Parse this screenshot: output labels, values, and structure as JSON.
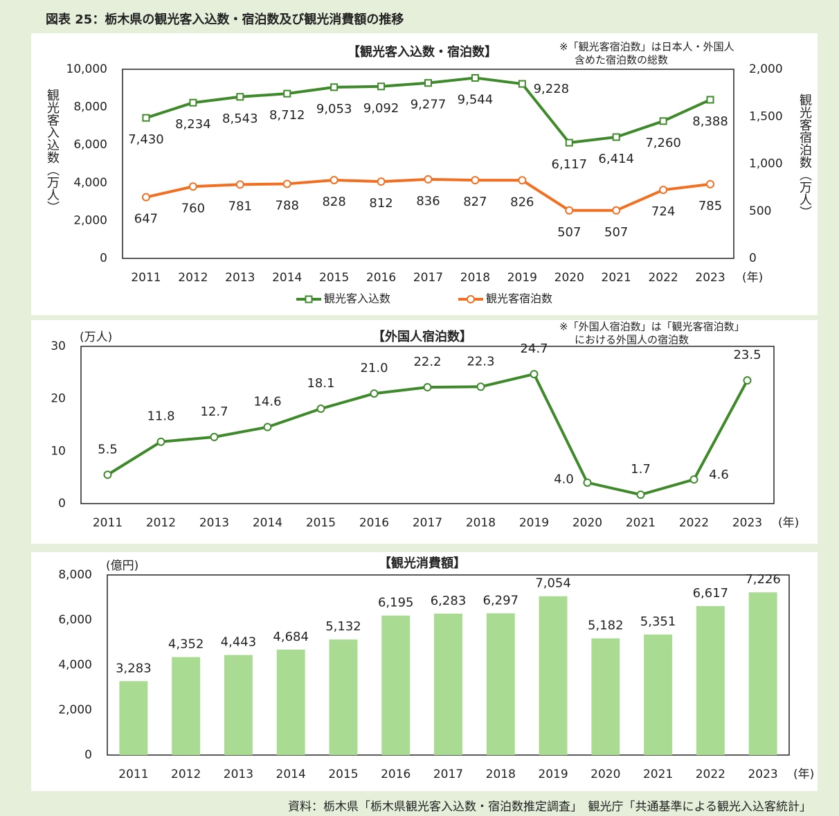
{
  "title": "図表 25：栃木県の観光客入込数・宿泊数及び観光消費額の推移",
  "source": "資料：栃木県「栃木県観光客入込数・宿泊数推定調査」　観光庁「共通基準による観光入込客統計」",
  "chart_data": [
    {
      "type": "line",
      "title": "【観光客入込数・宿泊数】",
      "notes": [
        "※「観光客宿泊数」は日本人・外国人",
        "含めた宿泊数の総数"
      ],
      "y_label": "観光客入込数（万人）",
      "y2_label": "観光客宿泊数（万人）",
      "x_unit": "(年)",
      "categories": [
        "2011",
        "2012",
        "2013",
        "2014",
        "2015",
        "2016",
        "2017",
        "2018",
        "2019",
        "2020",
        "2021",
        "2022",
        "2023"
      ],
      "series": [
        {
          "name": "観光客入込数",
          "color": "#3e8a2a",
          "marker": "square",
          "values": [
            7430,
            8234,
            8543,
            8712,
            9053,
            9092,
            9277,
            9544,
            9228,
            6117,
            6414,
            7260,
            8388
          ],
          "value_labels": [
            "7,430",
            "8,234",
            "8,543",
            "8,712",
            "9,053",
            "9,092",
            "9,277",
            "9,544",
            "9,228",
            "6,117",
            "6,414",
            "7,260",
            "8,388"
          ]
        },
        {
          "name": "観光客宿泊数",
          "color": "#f26f21",
          "marker": "circle",
          "axis": "y2",
          "values": [
            647,
            760,
            781,
            788,
            828,
            812,
            836,
            827,
            826,
            507,
            507,
            724,
            785
          ]
        }
      ],
      "ylim": [
        0,
        10000
      ],
      "yticks": [
        0,
        {
          "value": 2000,
          "label": "2,000"
        },
        {
          "value": 4000,
          "label": "4,000"
        },
        {
          "value": 6000,
          "label": "6,000"
        },
        {
          "value": 8000,
          "label": "8,000"
        },
        {
          "value": 10000,
          "label": "10,000"
        }
      ],
      "y2lim": [
        0,
        2000
      ],
      "y2ticks": [
        0,
        500,
        {
          "value": 1000,
          "label": "1,000"
        },
        {
          "value": 1500,
          "label": "1,500"
        },
        {
          "value": 2000,
          "label": "2,000"
        }
      ],
      "legend": "bottom"
    },
    {
      "type": "line",
      "title": "【外国人宿泊数】",
      "notes": [
        "※「外国人宿泊数」は「観光客宿泊数」",
        "における外国人の宿泊数"
      ],
      "y_unit": "(万人)",
      "x_unit": "(年)",
      "categories": [
        "2011",
        "2012",
        "2013",
        "2014",
        "2015",
        "2016",
        "2017",
        "2018",
        "2019",
        "2020",
        "2021",
        "2022",
        "2023"
      ],
      "color": "#3e8a2a",
      "marker": "circle",
      "values": [
        5.5,
        11.8,
        12.7,
        14.6,
        18.1,
        21.0,
        22.2,
        22.3,
        24.7,
        4.0,
        1.7,
        4.6,
        23.5
      ],
      "value_labels": [
        "5.5",
        "11.8",
        "12.7",
        "14.6",
        "18.1",
        "21.0",
        "22.2",
        "22.3",
        "24.7",
        "4.0",
        "1.7",
        "4.6",
        "23.5"
      ],
      "ylim": [
        0,
        30
      ],
      "yticks": [
        0,
        10,
        20,
        30
      ]
    },
    {
      "type": "bar",
      "title": "【観光消費額】",
      "y_unit": "(億円)",
      "x_unit": "(年)",
      "categories": [
        "2011",
        "2012",
        "2013",
        "2014",
        "2015",
        "2016",
        "2017",
        "2018",
        "2019",
        "2020",
        "2021",
        "2022",
        "2023"
      ],
      "color": "#a9dc92",
      "values": [
        3283,
        4352,
        4443,
        4684,
        5132,
        6195,
        6283,
        6297,
        7054,
        5182,
        5351,
        6617,
        7226
      ],
      "value_labels": [
        "3,283",
        "4,352",
        "4,443",
        "4,684",
        "5,132",
        "6,195",
        "6,283",
        "6,297",
        "7,054",
        "5,182",
        "5,351",
        "6,617",
        "7,226"
      ],
      "ylim": [
        0,
        8000
      ],
      "yticks": [
        0,
        {
          "value": 2000,
          "label": "2,000"
        },
        {
          "value": 4000,
          "label": "4,000"
        },
        {
          "value": 6000,
          "label": "6,000"
        },
        {
          "value": 8000,
          "label": "8,000"
        }
      ]
    }
  ]
}
